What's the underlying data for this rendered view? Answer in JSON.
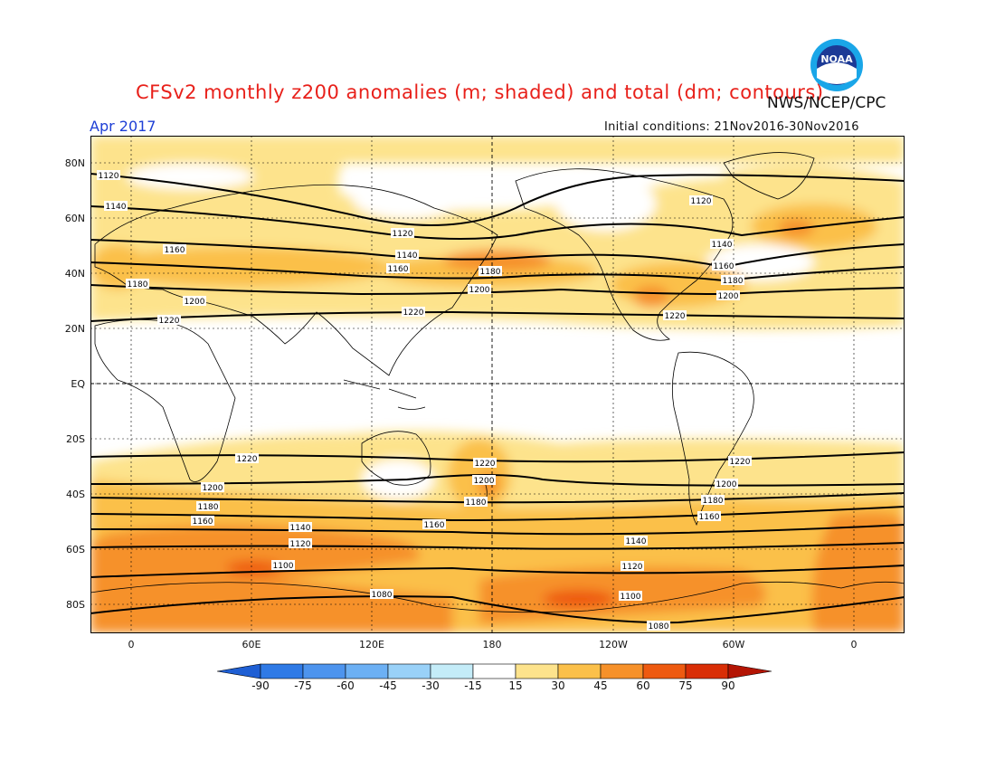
{
  "title": "CFSv2 monthly z200 anomalies (m; shaded) and total (dm; contours)",
  "agency": "NWS/NCEP/CPC",
  "month": "Apr 2017",
  "initial_conditions": "Initial conditions: 21Nov2016-30Nov2016",
  "logo": {
    "icon": "noaa-logo",
    "text": "NOAA"
  },
  "axes": {
    "lat_labels": [
      "80N",
      "60N",
      "40N",
      "20N",
      "EQ",
      "20S",
      "40S",
      "60S",
      "80S"
    ],
    "lon_labels": [
      "0",
      "60E",
      "120E",
      "180",
      "120W",
      "60W",
      "0"
    ]
  },
  "colorbar": {
    "labels": [
      "-90",
      "-75",
      "-60",
      "-45",
      "-30",
      "-15",
      "15",
      "30",
      "45",
      "60",
      "75",
      "90"
    ],
    "colors": [
      "#1f5fd4",
      "#2f7ae6",
      "#4d94ee",
      "#6cb0f4",
      "#99d1f8",
      "#c4ecf8",
      "#ffffff",
      "#fde38c",
      "#fbc04a",
      "#f6912a",
      "#ee5a10",
      "#d92e06",
      "#b41504"
    ]
  },
  "contour_labels": {
    "nh": [
      "1120",
      "1140",
      "1160",
      "1180",
      "1200",
      "1220"
    ],
    "sh": [
      "1220",
      "1200",
      "1180",
      "1160",
      "1140",
      "1120",
      "1100",
      "1080"
    ]
  }
}
